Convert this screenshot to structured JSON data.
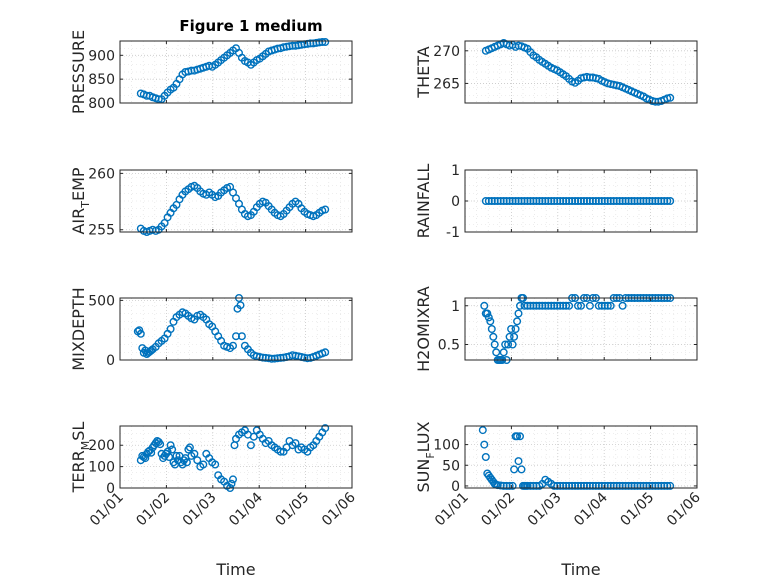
{
  "figure_title": "Figure 1 medium",
  "colors": {
    "marker": "#0072BD",
    "axis": "#262626",
    "grid": "#c8c8c8",
    "background": "#ffffff"
  },
  "chart_data": [
    {
      "type": "scatter",
      "panel": "top-left",
      "ylabel": "PRESSURE",
      "ylim": [
        800,
        930
      ],
      "yticks": [
        800,
        850,
        900
      ],
      "xlim": [
        0,
        156
      ],
      "xticks": [
        "01/01",
        "01/02",
        "01/03",
        "01/04",
        "01/05",
        "01/06"
      ],
      "show_xticks": false,
      "xlabel": "",
      "x": [
        14,
        16,
        18,
        20,
        22,
        24,
        26,
        28,
        30,
        32,
        34,
        36,
        38,
        40,
        42,
        44,
        46,
        48,
        50,
        52,
        54,
        56,
        58,
        60,
        62,
        64,
        66,
        68,
        70,
        72,
        74,
        76,
        78,
        80,
        82,
        84,
        86,
        88,
        90,
        92,
        94,
        96,
        98,
        100,
        102,
        104,
        106,
        108,
        110,
        112,
        114,
        116,
        118,
        120,
        122,
        124,
        126,
        128,
        130,
        132,
        134,
        136,
        138
      ],
      "y": [
        820,
        818,
        815,
        815,
        812,
        810,
        808,
        808,
        815,
        822,
        828,
        832,
        840,
        850,
        860,
        865,
        866,
        868,
        868,
        870,
        872,
        874,
        876,
        878,
        876,
        880,
        885,
        890,
        895,
        900,
        905,
        910,
        915,
        905,
        895,
        888,
        885,
        880,
        885,
        890,
        893,
        898,
        903,
        908,
        910,
        912,
        914,
        915,
        917,
        918,
        919,
        920,
        920,
        921,
        922,
        923,
        924,
        925,
        925,
        926,
        927,
        928,
        928
      ]
    },
    {
      "type": "scatter",
      "panel": "top-right",
      "ylabel": "THETA",
      "ylim": [
        262,
        271.5
      ],
      "yticks": [
        265,
        270
      ],
      "xlim": [
        0,
        156
      ],
      "xticks": [
        "01/01",
        "01/02",
        "01/03",
        "01/04",
        "01/05",
        "01/06"
      ],
      "show_xticks": false,
      "xlabel": "",
      "x": [
        14,
        16,
        18,
        20,
        22,
        24,
        26,
        28,
        30,
        32,
        34,
        36,
        38,
        40,
        42,
        44,
        46,
        48,
        50,
        52,
        54,
        56,
        58,
        60,
        62,
        64,
        66,
        68,
        70,
        72,
        74,
        76,
        78,
        80,
        82,
        84,
        86,
        88,
        90,
        92,
        94,
        96,
        98,
        100,
        102,
        104,
        106,
        108,
        110,
        112,
        114,
        116,
        118,
        120,
        122,
        124,
        126,
        128,
        130,
        132,
        134,
        136,
        138
      ],
      "y": [
        270,
        270.2,
        270.4,
        270.6,
        270.8,
        271,
        271.2,
        271,
        270.8,
        270.9,
        270.6,
        270.8,
        270.7,
        270.5,
        270.3,
        269.8,
        269.3,
        269,
        268.6,
        268.3,
        268,
        267.7,
        267.4,
        267.2,
        267,
        266.7,
        266.4,
        266.1,
        265.7,
        265.3,
        265.1,
        265.4,
        265.8,
        265.9,
        266,
        265.9,
        265.9,
        265.8,
        265.7,
        265.4,
        265.2,
        265,
        264.9,
        264.8,
        264.7,
        264.6,
        264.4,
        264.2,
        264,
        263.8,
        263.6,
        263.4,
        263.2,
        263,
        262.7,
        262.5,
        262.3,
        262.2,
        262.2,
        262.3,
        262.5,
        262.7,
        262.8
      ]
    },
    {
      "type": "scatter",
      "panel": "middle-left",
      "ylabel": "AIR",
      "ylabel_sub": "T",
      "ylabel_rest": "EMP",
      "ylim": [
        254.8,
        260.3
      ],
      "yticks": [
        255,
        260
      ],
      "xlim": [
        0,
        156
      ],
      "xticks": [
        "01/01",
        "01/02",
        "01/03",
        "01/04",
        "01/05",
        "01/06"
      ],
      "show_xticks": false,
      "xlabel": "",
      "x": [
        14,
        16,
        18,
        20,
        22,
        24,
        26,
        28,
        30,
        32,
        34,
        36,
        38,
        40,
        42,
        44,
        46,
        48,
        50,
        52,
        54,
        56,
        58,
        60,
        62,
        64,
        66,
        68,
        70,
        72,
        74,
        76,
        78,
        80,
        82,
        84,
        86,
        88,
        90,
        92,
        94,
        96,
        98,
        100,
        102,
        104,
        106,
        108,
        110,
        112,
        114,
        116,
        118,
        120,
        122,
        124,
        126,
        128,
        130,
        132,
        134,
        136,
        138
      ],
      "y": [
        255.1,
        254.9,
        254.8,
        254.9,
        255,
        254.9,
        255,
        255.3,
        255.6,
        256.1,
        256.5,
        256.9,
        257.2,
        257.7,
        258.1,
        258.4,
        258.6,
        258.8,
        258.9,
        258.7,
        258.4,
        258.2,
        258.1,
        258.3,
        258.1,
        257.9,
        258,
        258.3,
        258.5,
        258.7,
        258.8,
        258.3,
        257.8,
        257.3,
        256.8,
        256.4,
        256.2,
        256.3,
        256.6,
        257,
        257.3,
        257.5,
        257.4,
        257.1,
        256.8,
        256.5,
        256.3,
        256.2,
        256.4,
        256.7,
        257,
        257.3,
        257.5,
        257.3,
        256.9,
        256.6,
        256.4,
        256.3,
        256.2,
        256.3,
        256.5,
        256.7,
        256.8
      ]
    },
    {
      "type": "scatter",
      "panel": "middle-right",
      "ylabel": "RAINFALL",
      "ylim": [
        -1,
        1
      ],
      "yticks": [
        -1,
        0,
        1
      ],
      "xlim": [
        0,
        156
      ],
      "xticks": [
        "01/01",
        "01/02",
        "01/03",
        "01/04",
        "01/05",
        "01/06"
      ],
      "show_xticks": false,
      "xlabel": "",
      "x": [
        14,
        16,
        18,
        20,
        22,
        24,
        26,
        28,
        30,
        32,
        34,
        36,
        38,
        40,
        42,
        44,
        46,
        48,
        50,
        52,
        54,
        56,
        58,
        60,
        62,
        64,
        66,
        68,
        70,
        72,
        74,
        76,
        78,
        80,
        82,
        84,
        86,
        88,
        90,
        92,
        94,
        96,
        98,
        100,
        102,
        104,
        106,
        108,
        110,
        112,
        114,
        116,
        118,
        120,
        122,
        124,
        126,
        128,
        130,
        132,
        134,
        136,
        138
      ],
      "y": [
        0,
        0,
        0,
        0,
        0,
        0,
        0,
        0,
        0,
        0,
        0,
        0,
        0,
        0,
        0,
        0,
        0,
        0,
        0,
        0,
        0,
        0,
        0,
        0,
        0,
        0,
        0,
        0,
        0,
        0,
        0,
        0,
        0,
        0,
        0,
        0,
        0,
        0,
        0,
        0,
        0,
        0,
        0,
        0,
        0,
        0,
        0,
        0,
        0,
        0,
        0,
        0,
        0,
        0,
        0,
        0,
        0,
        0,
        0,
        0,
        0,
        0,
        0
      ]
    },
    {
      "type": "scatter",
      "panel": "lower-middle-left",
      "ylabel": "MIXDEPTH",
      "ylim": [
        0,
        520
      ],
      "yticks": [
        0,
        500
      ],
      "xlim": [
        0,
        156
      ],
      "xticks": [
        "01/01",
        "01/02",
        "01/03",
        "01/04",
        "01/05",
        "01/06"
      ],
      "show_xticks": false,
      "xlabel": "",
      "x": [
        12,
        13,
        14,
        15,
        16,
        17,
        18,
        19,
        20,
        21,
        22,
        24,
        26,
        28,
        30,
        32,
        34,
        36,
        38,
        40,
        42,
        44,
        46,
        48,
        50,
        52,
        54,
        56,
        58,
        60,
        62,
        64,
        66,
        68,
        70,
        72,
        74,
        76,
        78,
        79,
        80,
        81,
        82,
        84,
        86,
        88,
        90,
        92,
        94,
        96,
        98,
        100,
        102,
        104,
        106,
        108,
        110,
        112,
        114,
        116,
        118,
        120,
        122,
        124,
        126,
        128,
        130,
        132,
        134,
        136,
        138
      ],
      "y": [
        240,
        250,
        220,
        100,
        60,
        80,
        50,
        60,
        70,
        80,
        90,
        110,
        140,
        160,
        180,
        220,
        260,
        320,
        360,
        380,
        400,
        390,
        370,
        350,
        340,
        370,
        380,
        360,
        340,
        300,
        280,
        240,
        200,
        160,
        120,
        110,
        100,
        120,
        200,
        430,
        520,
        460,
        200,
        120,
        90,
        60,
        40,
        30,
        25,
        20,
        18,
        15,
        10,
        12,
        15,
        18,
        20,
        25,
        30,
        40,
        35,
        30,
        25,
        20,
        15,
        18,
        25,
        35,
        45,
        55,
        65
      ]
    },
    {
      "type": "scatter",
      "panel": "lower-middle-right",
      "ylabel": "H2OMIXRA",
      "ylim": [
        0.3,
        1.1
      ],
      "yticks": [
        0.5,
        1
      ],
      "xlim": [
        0,
        156
      ],
      "xticks": [
        "01/01",
        "01/02",
        "01/03",
        "01/04",
        "01/05",
        "01/06"
      ],
      "show_xticks": false,
      "xlabel": "",
      "x": [
        13,
        14,
        15,
        16,
        17,
        18,
        19,
        20,
        21,
        22,
        23,
        24,
        25,
        26,
        27,
        28,
        29,
        30,
        31,
        32,
        33,
        34,
        35,
        36,
        37,
        38,
        39,
        40,
        42,
        44,
        46,
        48,
        50,
        52,
        54,
        56,
        58,
        60,
        62,
        64,
        66,
        68,
        70,
        72,
        74,
        76,
        78,
        80,
        82,
        84,
        86,
        88,
        90,
        92,
        94,
        96,
        98,
        100,
        102,
        104,
        106,
        108,
        110,
        112,
        114,
        116,
        118,
        120,
        122,
        124,
        126,
        128,
        130,
        132,
        134,
        136,
        138
      ],
      "y": [
        1,
        0.9,
        0.9,
        0.85,
        0.8,
        0.7,
        0.6,
        0.5,
        0.4,
        0.3,
        0.3,
        0.3,
        0.3,
        0.4,
        0.5,
        0.3,
        0.5,
        0.6,
        0.7,
        0.5,
        0.6,
        0.7,
        0.8,
        0.9,
        1,
        1.1,
        1.1,
        1,
        1,
        1,
        1,
        1,
        1,
        1,
        1,
        1,
        1,
        1,
        1,
        1,
        1,
        1,
        1,
        1.1,
        1.1,
        1,
        1,
        1.1,
        1.1,
        1,
        1.1,
        1.1,
        1,
        1,
        1,
        1,
        1,
        1.1,
        1.1,
        1.1,
        1,
        1.1,
        1.1,
        1.1,
        1.1,
        1.1,
        1.1,
        1.1,
        1.1,
        1.1,
        1.1,
        1.1,
        1.1,
        1.1,
        1.1,
        1.1,
        1.1
      ]
    },
    {
      "type": "scatter",
      "panel": "bottom-left",
      "ylabel": "TERR",
      "ylabel_sub": "M",
      "ylabel_rest": "SL",
      "ylim": [
        0,
        290
      ],
      "yticks": [
        0,
        100,
        200
      ],
      "xlim": [
        0,
        156
      ],
      "xticks": [
        "01/01",
        "01/02",
        "01/03",
        "01/04",
        "01/05",
        "01/06"
      ],
      "show_xticks": true,
      "xlabel": "Time",
      "x": [
        14,
        15,
        16,
        17,
        18,
        19,
        20,
        21,
        22,
        23,
        24,
        25,
        26,
        27,
        28,
        29,
        30,
        31,
        32,
        33,
        34,
        35,
        36,
        37,
        38,
        39,
        40,
        41,
        42,
        43,
        44,
        45,
        46,
        47,
        48,
        50,
        52,
        54,
        56,
        58,
        60,
        62,
        64,
        66,
        68,
        70,
        72,
        74,
        75,
        76,
        77,
        78,
        80,
        82,
        84,
        86,
        88,
        90,
        92,
        94,
        96,
        98,
        100,
        102,
        104,
        106,
        108,
        110,
        112,
        114,
        116,
        118,
        120,
        122,
        124,
        126,
        128,
        130,
        132,
        134,
        136,
        138
      ],
      "y": [
        130,
        150,
        145,
        140,
        160,
        170,
        175,
        165,
        190,
        200,
        210,
        220,
        215,
        205,
        160,
        140,
        150,
        160,
        170,
        145,
        200,
        180,
        120,
        110,
        150,
        130,
        150,
        120,
        110,
        130,
        140,
        120,
        180,
        190,
        150,
        160,
        130,
        100,
        110,
        160,
        140,
        120,
        110,
        60,
        40,
        30,
        10,
        0,
        20,
        40,
        200,
        230,
        250,
        260,
        270,
        250,
        200,
        240,
        270,
        250,
        230,
        210,
        220,
        200,
        190,
        180,
        170,
        170,
        190,
        220,
        200,
        210,
        180,
        190,
        180,
        170,
        190,
        200,
        220,
        240,
        260,
        280
      ]
    },
    {
      "type": "scatter",
      "panel": "bottom-right",
      "ylabel": "SUN",
      "ylabel_sub": "F",
      "ylabel_rest": "LUX",
      "ylim": [
        -5,
        145
      ],
      "yticks": [
        0,
        50,
        100
      ],
      "xlim": [
        0,
        156
      ],
      "xticks": [
        "01/01",
        "01/02",
        "01/03",
        "01/04",
        "01/05",
        "01/06"
      ],
      "show_xticks": true,
      "xlabel": "Time",
      "x": [
        12,
        13,
        14,
        15,
        16,
        17,
        18,
        19,
        20,
        21,
        22,
        24,
        26,
        28,
        30,
        32,
        33,
        34,
        35,
        36,
        37,
        38,
        39,
        40,
        41,
        42,
        44,
        46,
        48,
        50,
        52,
        54,
        56,
        58,
        60,
        62,
        64,
        66,
        68,
        70,
        72,
        74,
        76,
        78,
        80,
        82,
        84,
        86,
        88,
        90,
        92,
        94,
        96,
        98,
        100,
        102,
        104,
        106,
        108,
        110,
        112,
        114,
        116,
        118,
        120,
        122,
        124,
        126,
        128,
        130,
        132,
        134,
        136,
        138
      ],
      "y": [
        135,
        100,
        70,
        30,
        25,
        20,
        15,
        10,
        5,
        3,
        2,
        1,
        0,
        0,
        0,
        0,
        40,
        120,
        120,
        60,
        120,
        40,
        0,
        0,
        0,
        0,
        0,
        0,
        0,
        0,
        5,
        15,
        10,
        5,
        0,
        0,
        0,
        0,
        0,
        0,
        0,
        0,
        0,
        0,
        0,
        0,
        0,
        0,
        0,
        0,
        0,
        0,
        0,
        0,
        0,
        0,
        0,
        0,
        0,
        0,
        0,
        0,
        0,
        0,
        0,
        0,
        0,
        0,
        0,
        0,
        0,
        0,
        0,
        0
      ]
    }
  ]
}
